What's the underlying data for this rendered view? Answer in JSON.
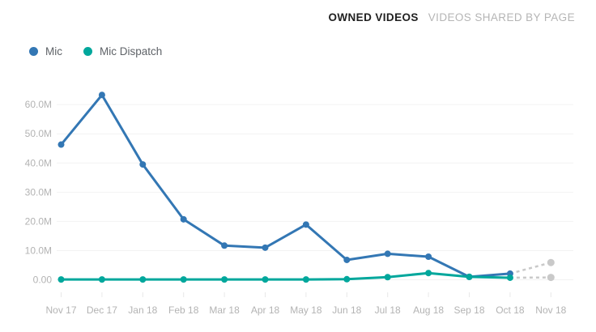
{
  "header": {
    "tabs": [
      {
        "label": "OWNED VIDEOS",
        "active": true
      },
      {
        "label": "VIDEOS SHARED BY PAGE",
        "active": false
      }
    ]
  },
  "legend": {
    "items": [
      {
        "label": "Mic",
        "color": "#3377b4"
      },
      {
        "label": "Mic Dispatch",
        "color": "#00a79c"
      }
    ]
  },
  "chart_data": {
    "type": "line",
    "unit": "video views, millions",
    "grid": "horizontal",
    "legend_position": "top-left",
    "categories": [
      "Nov 17",
      "Dec 17",
      "Jan 18",
      "Feb 18",
      "Mar 18",
      "Apr 18",
      "May 18",
      "Jun 18",
      "Jul 18",
      "Aug 18",
      "Sep 18",
      "Oct 18",
      "Nov 18"
    ],
    "y_ticks": [
      {
        "label": "60.0M",
        "value": 60
      },
      {
        "label": "50.0M",
        "value": 50
      },
      {
        "label": "40.0M",
        "value": 40
      },
      {
        "label": "30.0M",
        "value": 30
      },
      {
        "label": "20.0M",
        "value": 20
      },
      {
        "label": "10.0M",
        "value": 10
      },
      {
        "label": "0.00",
        "value": 0
      }
    ],
    "ylim": [
      0,
      65
    ],
    "series": [
      {
        "name": "Mic",
        "color": "#3377b4",
        "values": [
          46.3,
          63.3,
          39.5,
          20.7,
          11.7,
          11.0,
          18.9,
          6.8,
          8.9,
          7.9,
          1.0,
          2.1
        ],
        "projection": {
          "category": "Nov 18",
          "value": 5.9
        }
      },
      {
        "name": "Mic Dispatch",
        "color": "#00a79c",
        "values": [
          0.1,
          0.1,
          0.1,
          0.1,
          0.1,
          0.1,
          0.1,
          0.2,
          0.9,
          2.3,
          1.0,
          0.7
        ],
        "projection": {
          "category": "Nov 18",
          "value": 0.8
        }
      }
    ],
    "projection_style": {
      "color": "#c9c9c9",
      "dashed": true
    }
  }
}
